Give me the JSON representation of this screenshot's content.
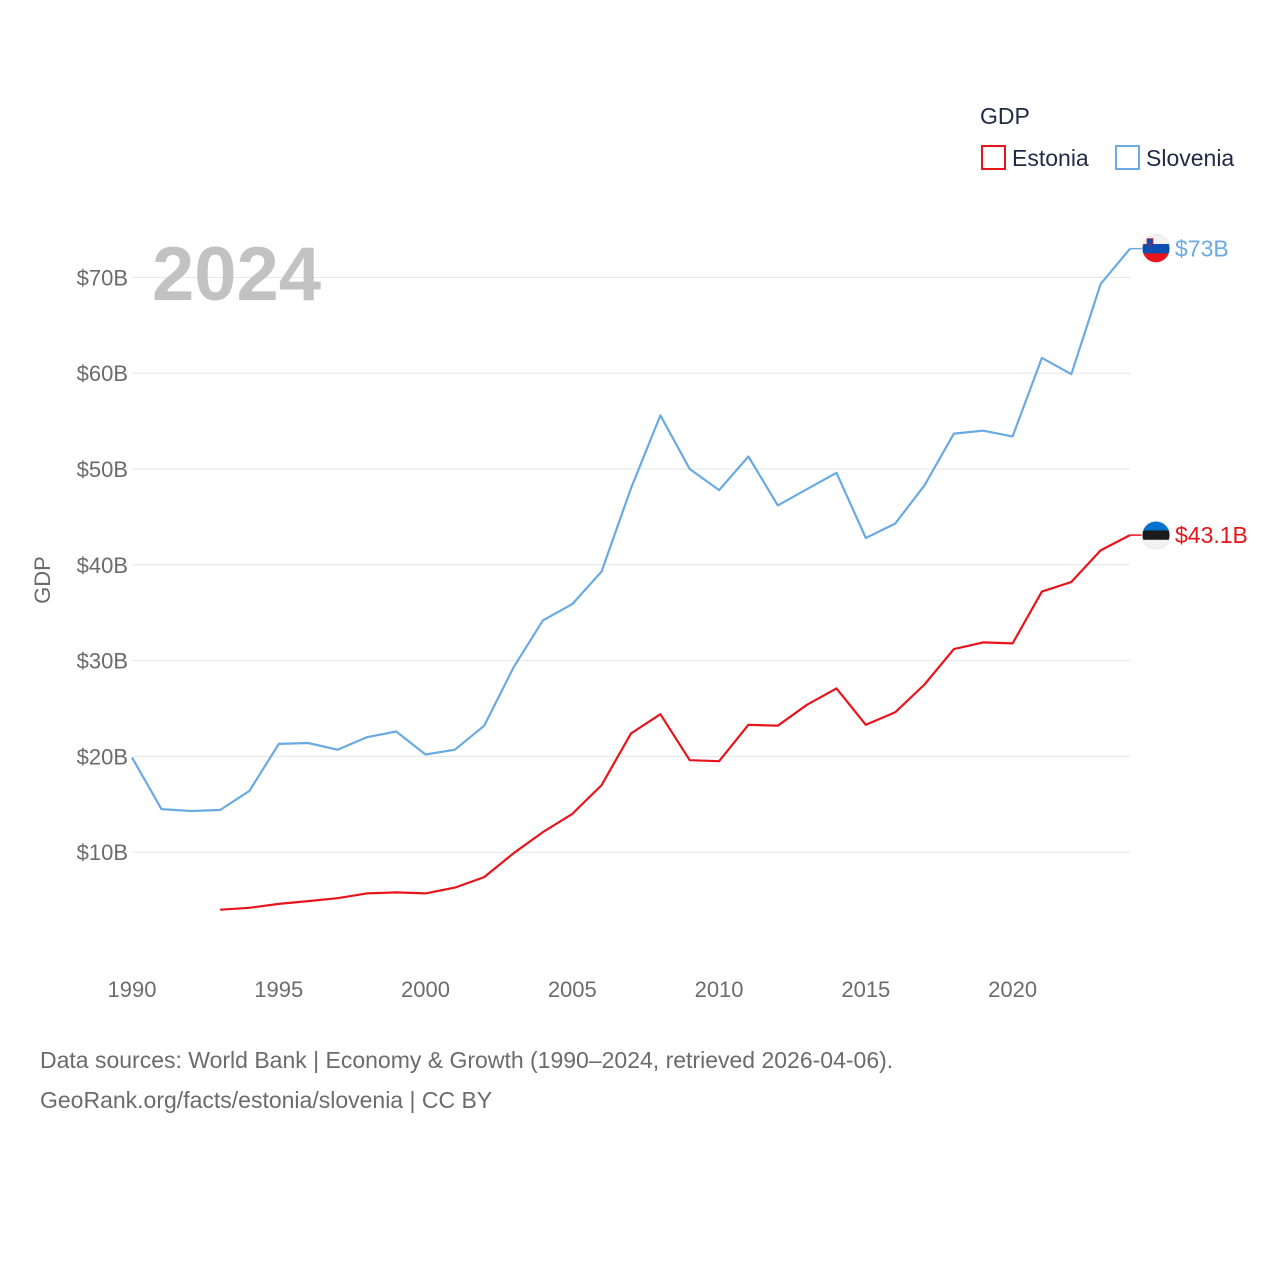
{
  "chart_data": {
    "type": "line",
    "title": "",
    "year_label": "2024",
    "ylabel": "GDP",
    "xlabel": "",
    "xlim": [
      1990,
      2024
    ],
    "ylim": [
      0,
      75
    ],
    "x_ticks": [
      1990,
      1995,
      2000,
      2005,
      2010,
      2015,
      2020
    ],
    "y_ticks": [
      {
        "value": 10,
        "label": "$10B"
      },
      {
        "value": 20,
        "label": "$20B"
      },
      {
        "value": 30,
        "label": "$30B"
      },
      {
        "value": 40,
        "label": "$40B"
      },
      {
        "value": 50,
        "label": "$50B"
      },
      {
        "value": 60,
        "label": "$60B"
      },
      {
        "value": 70,
        "label": "$70B"
      }
    ],
    "legend": {
      "title": "GDP",
      "position": "top-right"
    },
    "series": [
      {
        "name": "Estonia",
        "color": "#e8141c",
        "end_label": "$43.1B",
        "flag": "estonia-flag-icon",
        "x": [
          1993,
          1994,
          1995,
          1996,
          1997,
          1998,
          1999,
          2000,
          2001,
          2002,
          2003,
          2004,
          2005,
          2006,
          2007,
          2008,
          2009,
          2010,
          2011,
          2012,
          2013,
          2014,
          2015,
          2016,
          2017,
          2018,
          2019,
          2020,
          2021,
          2022,
          2023,
          2024
        ],
        "values": [
          4.0,
          4.2,
          4.6,
          4.9,
          5.2,
          5.7,
          5.8,
          5.7,
          6.3,
          7.4,
          9.9,
          12.1,
          14.0,
          17.0,
          22.4,
          24.4,
          19.6,
          19.5,
          23.3,
          23.2,
          25.4,
          27.1,
          23.3,
          24.6,
          27.5,
          31.2,
          31.9,
          31.8,
          37.2,
          38.2,
          41.5,
          43.1
        ]
      },
      {
        "name": "Slovenia",
        "color": "#6aaae2",
        "end_label": "$73B",
        "flag": "slovenia-flag-icon",
        "x": [
          1990,
          1991,
          1992,
          1993,
          1994,
          1995,
          1996,
          1997,
          1998,
          1999,
          2000,
          2001,
          2002,
          2003,
          2004,
          2005,
          2006,
          2007,
          2008,
          2009,
          2010,
          2011,
          2012,
          2013,
          2014,
          2015,
          2016,
          2017,
          2018,
          2019,
          2020,
          2021,
          2022,
          2023,
          2024
        ],
        "values": [
          19.9,
          14.5,
          14.3,
          14.4,
          16.4,
          21.3,
          21.4,
          20.7,
          22.0,
          22.6,
          20.2,
          20.7,
          23.2,
          29.3,
          34.2,
          35.9,
          39.3,
          48.0,
          55.6,
          50.0,
          47.8,
          51.3,
          46.2,
          47.9,
          49.6,
          42.8,
          44.3,
          48.3,
          53.7,
          54.0,
          53.4,
          61.6,
          59.9,
          69.3,
          73.0
        ]
      }
    ]
  },
  "footer": {
    "line1": "Data sources: World Bank | Economy & Growth (1990–2024, retrieved 2026-04-06).",
    "line2": "GeoRank.org/facts/estonia/slovenia | CC BY"
  }
}
